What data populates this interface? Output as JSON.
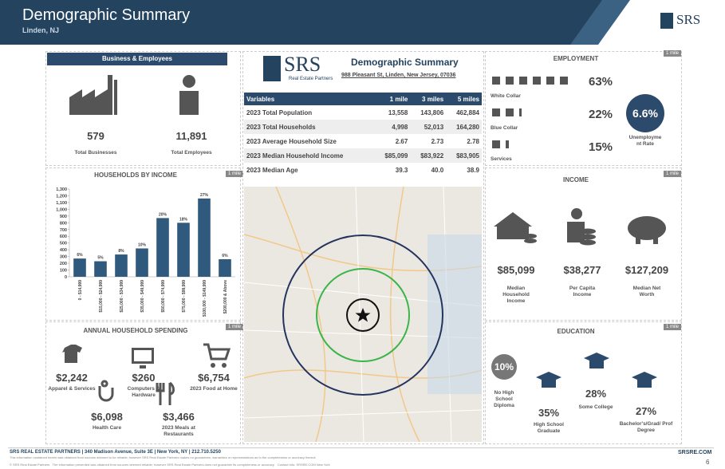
{
  "header": {
    "title": "Demographic Summary",
    "subtitle": "Linden, NJ",
    "logo": "SRS"
  },
  "business": {
    "title": "Business & Employees",
    "businesses": {
      "value": "579",
      "label": "Total Businesses"
    },
    "employees": {
      "value": "11,891",
      "label": "Total Employees"
    }
  },
  "households_by_income": {
    "title": "HOUSEHOLDS BY INCOME",
    "badge": "1 mile"
  },
  "chart_data": {
    "type": "bar",
    "color": "#2f5a7d",
    "categories": [
      "0 - $14,999",
      "$15,000 - $24,999",
      "$25,000 - $34,999",
      "$35,000 - $49,999",
      "$50,000 - $74,999",
      "$75,000 - $99,999",
      "$100,000 - $149,999",
      "$200,000 & Above"
    ],
    "values": [
      270,
      230,
      330,
      420,
      870,
      800,
      1160,
      260
    ],
    "shares": [
      "6%",
      "5%",
      "8%",
      "10%",
      "20%",
      "18%",
      "27%",
      "6%"
    ],
    "ylim": [
      0,
      1300
    ],
    "yticks": [
      0,
      100,
      200,
      300,
      400,
      500,
      600,
      700,
      800,
      900,
      {
        "value": 1000,
        "label": "1,000"
      },
      {
        "value": 1100,
        "label": "1,100"
      },
      {
        "value": 1200,
        "label": "1,200"
      },
      {
        "value": 1300,
        "label": "1,300"
      }
    ]
  },
  "spending": {
    "title": "ANNUAL HOUSEHOLD SPENDING",
    "badge": "1 mile",
    "items": [
      {
        "value": "$2,242",
        "label": "Apparel & Services"
      },
      {
        "value": "$260",
        "label": "Computers & Hardware"
      },
      {
        "value": "$6,754",
        "label": "2023 Food at Home"
      },
      {
        "value": "$6,098",
        "label": "Health Care"
      },
      {
        "value": "$3,466",
        "label": "2023 Meals at Restaurants"
      }
    ]
  },
  "summary": {
    "logo": "SRS",
    "logo_sub": "Real Estate Partners",
    "title": "Demographic Summary",
    "address": "988 Pleasant St, Linden, New Jersey, 07036",
    "table": {
      "headers": [
        "Variables",
        "1 mile",
        "3 miles",
        "5 miles"
      ],
      "rows": [
        [
          "2023 Total Population",
          "13,558",
          "143,806",
          "462,884"
        ],
        [
          "2023 Total Households",
          "4,998",
          "52,013",
          "164,280"
        ],
        [
          "2023 Average Household Size",
          "2.67",
          "2.73",
          "2.78"
        ],
        [
          "2023 Median Household Income",
          "$85,099",
          "$83,922",
          "$83,905"
        ],
        [
          "2023 Median Age",
          "39.3",
          "40.0",
          "38.9"
        ]
      ]
    }
  },
  "employment": {
    "title": "EMPLOYMENT",
    "badge": "1 mile",
    "groups": [
      {
        "label": "White Collar",
        "value": "63%"
      },
      {
        "label": "Blue Collar",
        "value": "22%"
      },
      {
        "label": "Services",
        "value": "15%"
      }
    ],
    "unemployment": {
      "value": "6.6%",
      "label": "Unemployment Rate"
    }
  },
  "income": {
    "title": "INCOME",
    "badge": "1 mile",
    "items": [
      {
        "value": "$85,099",
        "label": "Median Household Income"
      },
      {
        "value": "$38,277",
        "label": "Per Capita Income"
      },
      {
        "value": "$127,209",
        "label": "Median Net Worth"
      }
    ]
  },
  "education": {
    "title": "EDUCATION",
    "badge": "1 mile",
    "items": [
      {
        "value": "10%",
        "label": "No High School Diploma"
      },
      {
        "value": "35%",
        "label": "High School Graduate"
      },
      {
        "value": "28%",
        "label": "Some College"
      },
      {
        "value": "27%",
        "label": "Bachelor's/Grad/ Prof Degree"
      }
    ]
  },
  "footer": {
    "contact": "SRS REAL ESTATE PARTNERS | 340 Madison Avenue, Suite 3E | New York, NY | 212.710.5250",
    "disclaimer": "This information contained herein was obtained from sources deemed to be reliable; however SRS Real Estate Partners makes no guarantees, warranties or representations as to the completeness or accuracy thereof.",
    "copyright": "© SRS Real Estate Partners   The information presented was obtained from sources deemed reliable; however SRS Real Estate Partners does not guarantee its completeness or accuracy.   Contact info: SRSRE.COM New York",
    "website": "SRSRE.COM",
    "page": "6"
  }
}
